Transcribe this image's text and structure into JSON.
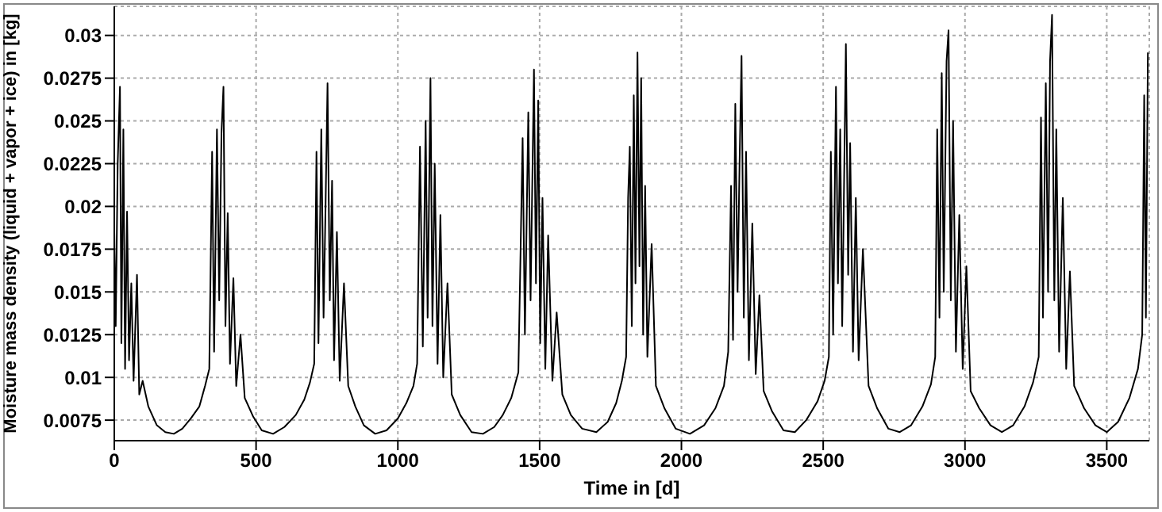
{
  "chart_data": {
    "type": "line",
    "xlabel": "Time in [d]",
    "ylabel": "Moisture mass density (liquid + vapor + ice) in [kg]",
    "xlim": [
      0,
      3650
    ],
    "xticks": [
      0,
      500,
      1000,
      1500,
      2000,
      2500,
      3000,
      3500
    ],
    "ylim": [
      0.0063,
      0.0317
    ],
    "yticks": [
      0.0075,
      0.01,
      0.0125,
      0.015,
      0.0175,
      0.02,
      0.0225,
      0.025,
      0.0275,
      0.03
    ],
    "grid": true,
    "legend": false,
    "marker": "none",
    "line_style": "solid",
    "series": [
      {
        "color": "#000000",
        "x": [
          0,
          5,
          12,
          20,
          25,
          32,
          38,
          45,
          52,
          60,
          68,
          80,
          88,
          100,
          120,
          150,
          180,
          210,
          240,
          270,
          300,
          320,
          335,
          345,
          352,
          362,
          370,
          378,
          385,
          392,
          400,
          408,
          420,
          430,
          445,
          460,
          490,
          520,
          560,
          600,
          640,
          670,
          690,
          705,
          713,
          720,
          730,
          738,
          745,
          752,
          760,
          768,
          775,
          785,
          795,
          810,
          825,
          850,
          880,
          920,
          960,
          1000,
          1030,
          1055,
          1068,
          1078,
          1088,
          1098,
          1105,
          1115,
          1122,
          1130,
          1140,
          1150,
          1160,
          1175,
          1190,
          1220,
          1260,
          1300,
          1340,
          1370,
          1400,
          1425,
          1440,
          1448,
          1460,
          1468,
          1480,
          1487,
          1495,
          1502,
          1510,
          1520,
          1530,
          1545,
          1560,
          1580,
          1610,
          1650,
          1700,
          1740,
          1770,
          1790,
          1805,
          1812,
          1818,
          1825,
          1832,
          1838,
          1845,
          1852,
          1858,
          1865,
          1872,
          1880,
          1895,
          1910,
          1940,
          1980,
          2030,
          2080,
          2120,
          2150,
          2165,
          2175,
          2182,
          2190,
          2198,
          2205,
          2212,
          2220,
          2228,
          2238,
          2250,
          2262,
          2275,
          2290,
          2320,
          2360,
          2400,
          2440,
          2480,
          2505,
          2520,
          2527,
          2535,
          2545,
          2552,
          2560,
          2567,
          2580,
          2588,
          2595,
          2605,
          2615,
          2625,
          2640,
          2660,
          2690,
          2730,
          2770,
          2810,
          2850,
          2880,
          2895,
          2902,
          2910,
          2918,
          2925,
          2935,
          2942,
          2950,
          2958,
          2968,
          2980,
          2992,
          3005,
          3020,
          3050,
          3090,
          3130,
          3170,
          3210,
          3240,
          3260,
          3268,
          3275,
          3285,
          3293,
          3300,
          3307,
          3315,
          3322,
          3332,
          3345,
          3357,
          3370,
          3385,
          3420,
          3460,
          3500,
          3540,
          3580,
          3610,
          3625,
          3632,
          3638,
          3645
        ],
        "values": [
          0.0185,
          0.013,
          0.0225,
          0.027,
          0.012,
          0.0245,
          0.0105,
          0.0197,
          0.011,
          0.0155,
          0.0098,
          0.016,
          0.009,
          0.0098,
          0.0083,
          0.0072,
          0.0068,
          0.0067,
          0.007,
          0.0076,
          0.0083,
          0.0095,
          0.0105,
          0.0232,
          0.0115,
          0.0245,
          0.0145,
          0.0243,
          0.027,
          0.013,
          0.0196,
          0.0108,
          0.0158,
          0.0095,
          0.0125,
          0.0088,
          0.0077,
          0.0069,
          0.0067,
          0.0071,
          0.0078,
          0.0087,
          0.0097,
          0.0108,
          0.0232,
          0.012,
          0.0245,
          0.0135,
          0.02,
          0.0272,
          0.0145,
          0.0215,
          0.011,
          0.0185,
          0.0098,
          0.0155,
          0.0095,
          0.0083,
          0.0072,
          0.0067,
          0.0069,
          0.0076,
          0.0085,
          0.0095,
          0.0108,
          0.0235,
          0.0118,
          0.025,
          0.0135,
          0.0275,
          0.013,
          0.0225,
          0.0108,
          0.0195,
          0.01,
          0.0155,
          0.009,
          0.0078,
          0.0068,
          0.0067,
          0.0071,
          0.0078,
          0.0088,
          0.0103,
          0.024,
          0.0125,
          0.0255,
          0.0145,
          0.028,
          0.0155,
          0.0262,
          0.012,
          0.0205,
          0.0105,
          0.0183,
          0.0098,
          0.0138,
          0.009,
          0.0078,
          0.007,
          0.0068,
          0.0074,
          0.0085,
          0.0098,
          0.0112,
          0.0205,
          0.0235,
          0.013,
          0.0265,
          0.0155,
          0.029,
          0.0165,
          0.0275,
          0.0125,
          0.0212,
          0.0112,
          0.0178,
          0.0095,
          0.0082,
          0.007,
          0.0067,
          0.0072,
          0.0082,
          0.0095,
          0.0115,
          0.0212,
          0.0122,
          0.026,
          0.015,
          0.0225,
          0.0288,
          0.0135,
          0.0232,
          0.011,
          0.019,
          0.0102,
          0.0148,
          0.0092,
          0.008,
          0.0069,
          0.0068,
          0.0075,
          0.0086,
          0.0098,
          0.0112,
          0.0232,
          0.0125,
          0.027,
          0.0155,
          0.0245,
          0.013,
          0.0295,
          0.016,
          0.0237,
          0.0115,
          0.0205,
          0.011,
          0.0175,
          0.0095,
          0.0082,
          0.007,
          0.0068,
          0.0072,
          0.0083,
          0.0096,
          0.0112,
          0.0245,
          0.0135,
          0.0278,
          0.015,
          0.0285,
          0.0303,
          0.0145,
          0.025,
          0.0115,
          0.0195,
          0.0105,
          0.0165,
          0.0092,
          0.0082,
          0.0072,
          0.0068,
          0.0072,
          0.0083,
          0.0097,
          0.0112,
          0.0252,
          0.0135,
          0.0272,
          0.015,
          0.0285,
          0.0312,
          0.0145,
          0.0245,
          0.0115,
          0.0205,
          0.0105,
          0.0162,
          0.0095,
          0.0082,
          0.0072,
          0.0068,
          0.0074,
          0.0088,
          0.0105,
          0.0125,
          0.0265,
          0.0135,
          0.029
        ]
      }
    ]
  }
}
